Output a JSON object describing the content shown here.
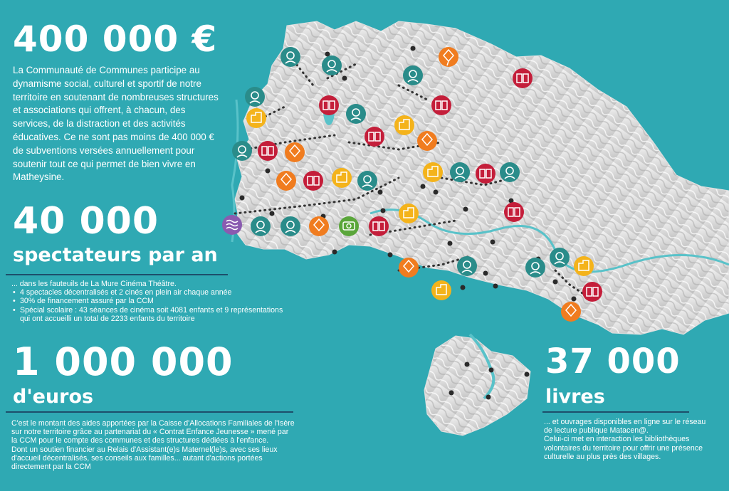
{
  "colors": {
    "background": "#2fa9b3",
    "rule": "#1d4f6b",
    "book": "#c41e3a",
    "kite": "#f07c1f",
    "building": "#f4b31b",
    "child": "#2a8c8a",
    "camera": "#5aa63a",
    "water": "#8a5bb0"
  },
  "map_icons": [
    "child-icon",
    "book-icon",
    "kite-icon",
    "building-icon",
    "camera-icon",
    "water-icon",
    "village-dot"
  ],
  "block1": {
    "big": "400 000 €",
    "para": "La Communauté de Communes participe au dynamisme social, culturel et sportif de notre territoire en soutenant de nombreuses structures et associations qui offrent, à chacun, des services, de la distraction et des activités éducatives. Ce ne sont pas moins de 400 000 € de subventions versées annuellement pour soutenir tout ce qui permet de bien vivre en Matheysine."
  },
  "block2": {
    "big": "40 000",
    "sub": "spectateurs par an",
    "intro": "... dans les fauteuils de La Mure Cinéma Théâtre.",
    "bullets": [
      "4 spectacles décentralisés et 2 cinés en plein air chaque année",
      "30% de financement assuré par la CCM",
      "Spécial scolaire : 43 séances de cinéma soit 4081 enfants et 9 représentations qui ont accueilli un total de 2233 enfants du territoire"
    ]
  },
  "block3": {
    "big": "1 000 000",
    "sub": "d'euros",
    "p1": "C'est le montant des aides apportées par la Caisse d'Allocations Familiales de l'Isère sur notre territoire grâce au partenariat du « Contrat Enfance Jeunesse » mené par la CCM pour le compte des communes et des structures dédiées à l'enfance.",
    "p2": "Dont un soutien financier au Relais d'Assistant(e)s Maternel(le)s, avec ses lieux d'accueil décentralisés, ses conseils aux familles... autant d'actions portées directement par la CCM"
  },
  "block4": {
    "big": "37 000",
    "sub": "livres",
    "p1": "... et ouvrages disponibles en ligne sur le réseau de lecture publique Matacen@.",
    "p2": "Celui-ci met en interaction les bibliothèques volontaires du territoire pour offrir une présence culturelle au plus près des villages."
  }
}
